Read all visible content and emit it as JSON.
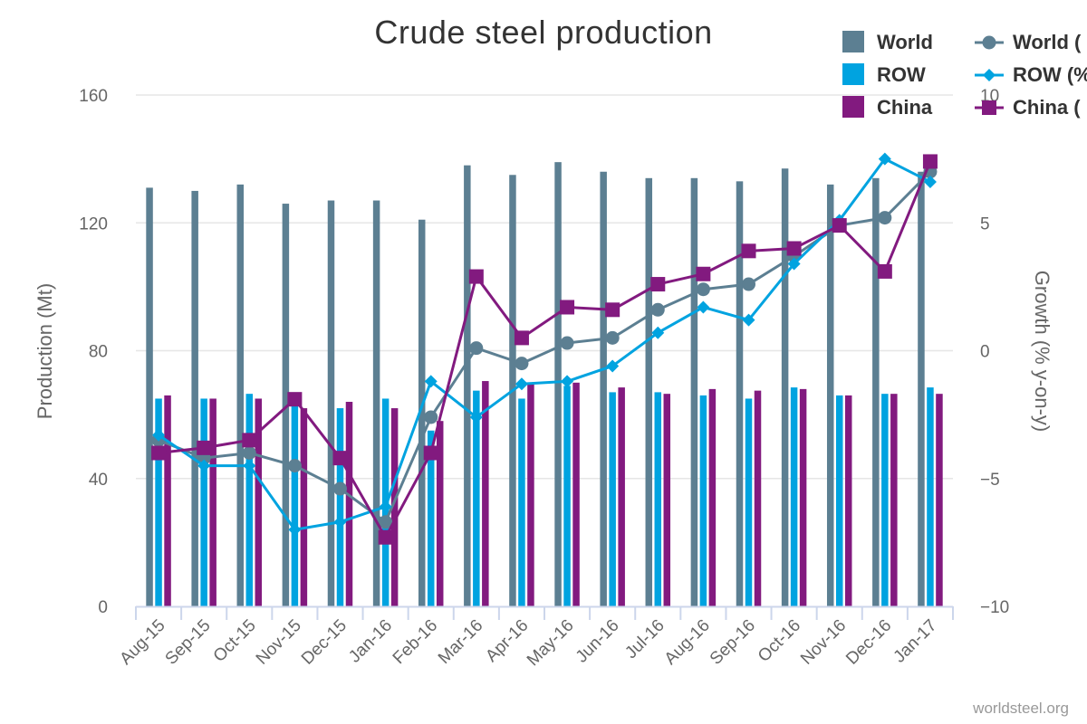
{
  "chart_data": {
    "type": "bar",
    "title": "Crude steel production",
    "credit": "worldsteel.org",
    "categories": [
      "Aug-15",
      "Sep-15",
      "Oct-15",
      "Nov-15",
      "Dec-15",
      "Jan-16",
      "Feb-16",
      "Mar-16",
      "Apr-16",
      "May-16",
      "Jun-16",
      "Jul-16",
      "Aug-16",
      "Sep-16",
      "Oct-16",
      "Nov-16",
      "Dec-16",
      "Jan-17"
    ],
    "y_left": {
      "title": "Production (Mt)",
      "min": 0,
      "max": 160,
      "ticks": [
        "0",
        "40",
        "80",
        "120",
        "160"
      ]
    },
    "y_right": {
      "title": "Growth (% y-on-y)",
      "min": -10,
      "max": 10,
      "ticks": [
        "−10",
        "−5",
        "0",
        "5",
        "10"
      ]
    },
    "grid": true,
    "legend_position": "top-right",
    "bar_series": [
      {
        "name": "World",
        "color": "#5c7f92",
        "values": [
          131,
          130,
          132,
          126,
          127,
          127,
          121,
          138,
          135,
          139,
          136,
          134,
          134,
          133,
          137,
          132,
          134,
          136
        ]
      },
      {
        "name": "ROW",
        "color": "#00a3e0",
        "values": [
          65,
          65,
          66.5,
          63,
          62,
          65,
          55,
          67.5,
          65,
          69,
          67,
          67,
          66,
          65,
          68.5,
          66,
          66.5,
          68.5
        ]
      },
      {
        "name": "China",
        "color": "#821a7f",
        "values": [
          66,
          65,
          65,
          62,
          64,
          62,
          58,
          70.5,
          70,
          70,
          68.5,
          66.5,
          68,
          67.5,
          68,
          66,
          66.5,
          66.5
        ]
      }
    ],
    "line_series": [
      {
        "name": "World (%)",
        "legend_label": "World (",
        "color": "#5c7f92",
        "marker": "circle",
        "values": [
          -3.5,
          -4.2,
          -4.0,
          -4.5,
          -5.4,
          -6.7,
          -2.6,
          0.1,
          -0.5,
          0.3,
          0.5,
          1.6,
          2.4,
          2.6,
          3.7,
          4.9,
          5.2,
          7.0
        ]
      },
      {
        "name": "ROW (%)",
        "legend_label": "ROW (%",
        "color": "#00a3e0",
        "marker": "diamond",
        "values": [
          -3.3,
          -4.5,
          -4.5,
          -7.0,
          -6.7,
          -6.1,
          -1.2,
          -2.6,
          -1.3,
          -1.2,
          -0.6,
          0.7,
          1.7,
          1.2,
          3.4,
          5.1,
          7.5,
          6.6
        ]
      },
      {
        "name": "China (%)",
        "legend_label": "China (",
        "color": "#821a7f",
        "marker": "square",
        "values": [
          -4.0,
          -3.8,
          -3.5,
          -1.9,
          -4.2,
          -7.3,
          -4.0,
          2.9,
          0.5,
          1.7,
          1.6,
          2.6,
          3.0,
          3.9,
          4.0,
          4.9,
          3.1,
          7.4
        ]
      }
    ]
  }
}
